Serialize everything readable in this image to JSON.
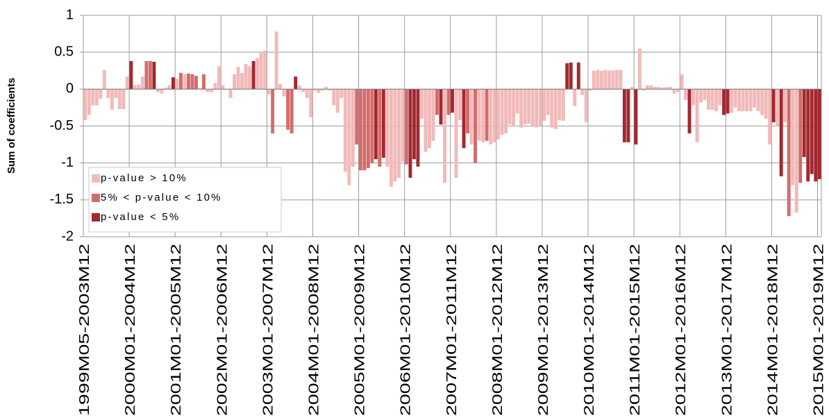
{
  "chart_data": {
    "type": "bar",
    "y_label": "Sum of coefficients",
    "categories": [
      "1999M05-2003M12",
      null,
      null,
      null,
      null,
      null,
      null,
      null,
      null,
      null,
      null,
      null,
      "2000M01-2004M12",
      null,
      null,
      null,
      null,
      null,
      null,
      null,
      null,
      null,
      null,
      null,
      "2001M01-2005M12",
      null,
      null,
      null,
      null,
      null,
      null,
      null,
      null,
      null,
      null,
      null,
      "2002M01-2006M12",
      null,
      null,
      null,
      null,
      null,
      null,
      null,
      null,
      null,
      null,
      null,
      "2003M01-2007M12",
      null,
      null,
      null,
      null,
      null,
      null,
      null,
      null,
      null,
      null,
      null,
      "2004M01-2008M12",
      null,
      null,
      null,
      null,
      null,
      null,
      null,
      null,
      null,
      null,
      null,
      "2005M01-2009M12",
      null,
      null,
      null,
      null,
      null,
      null,
      null,
      null,
      null,
      null,
      null,
      "2006M01-2010M12",
      null,
      null,
      null,
      null,
      null,
      null,
      null,
      null,
      null,
      null,
      null,
      "2007M01-2011M12",
      null,
      null,
      null,
      null,
      null,
      null,
      null,
      null,
      null,
      null,
      null,
      "2008M01-2012M12",
      null,
      null,
      null,
      null,
      null,
      null,
      null,
      null,
      null,
      null,
      null,
      "2009M01-2013M12",
      null,
      null,
      null,
      null,
      null,
      null,
      null,
      null,
      null,
      null,
      null,
      "2010M01-2014M12",
      null,
      null,
      null,
      null,
      null,
      null,
      null,
      null,
      null,
      null,
      null,
      "2011M01-2015M12",
      null,
      null,
      null,
      null,
      null,
      null,
      null,
      null,
      null,
      null,
      null,
      "2012M01-2016M12",
      null,
      null,
      null,
      null,
      null,
      null,
      null,
      null,
      null,
      null,
      null,
      "2013M01-2017M12",
      null,
      null,
      null,
      null,
      null,
      null,
      null,
      null,
      null,
      null,
      null,
      "2014M01-2018M12",
      null,
      null,
      null,
      null,
      null,
      null,
      null,
      null,
      null,
      null,
      null,
      "2015M01-2019M12"
    ],
    "series": [
      {
        "name": "p-value > 10%",
        "color": "#f2b9b9",
        "values": [
          -0.42,
          -0.35,
          -0.22,
          -0.22,
          -0.13,
          0.26,
          -0.12,
          -0.28,
          -0.12,
          -0.27,
          -0.27,
          0.17,
          null,
          0.05,
          0.06,
          0.17,
          null,
          null,
          null,
          -0.04,
          -0.06,
          0.02,
          0.05,
          null,
          0.14,
          null,
          0.2,
          null,
          null,
          null,
          0.02,
          null,
          -0.04,
          -0.04,
          0.08,
          0.31,
          0.05,
          -0.01,
          -0.12,
          0.2,
          0.3,
          0.22,
          0.34,
          0.31,
          null,
          0.42,
          0.49,
          0.52,
          -0.07,
          null,
          0.78,
          0.07,
          -0.1,
          null,
          null,
          null,
          0.05,
          -0.04,
          -0.12,
          -0.38,
          -0.02,
          -0.05,
          -0.02,
          0.03,
          -0.02,
          -0.22,
          -0.32,
          -0.12,
          -1.12,
          -1.3,
          -1.05,
          null,
          null,
          null,
          null,
          null,
          null,
          null,
          null,
          -1.05,
          -1.32,
          -1.25,
          -1.2,
          -0.98,
          null,
          null,
          null,
          null,
          -0.4,
          -0.85,
          -0.8,
          -0.7,
          null,
          null,
          -1.27,
          null,
          null,
          -1.2,
          -0.42,
          null,
          null,
          -0.75,
          null,
          -0.7,
          -0.72,
          null,
          -0.75,
          -0.72,
          -0.68,
          -0.62,
          -0.6,
          -0.48,
          -0.5,
          -0.33,
          -0.52,
          -0.48,
          -0.47,
          -0.5,
          -0.52,
          -0.5,
          -0.43,
          -0.35,
          -0.52,
          -0.54,
          -0.42,
          -0.43,
          null,
          null,
          -0.23,
          null,
          -0.08,
          -0.45,
          -0.02,
          0.25,
          0.26,
          0.25,
          0.26,
          0.25,
          0.25,
          0.26,
          0.26,
          null,
          null,
          0.03,
          null,
          0.55,
          -0.02,
          0.05,
          0.05,
          0.03,
          0.03,
          0.02,
          0.03,
          0.03,
          -0.06,
          -0.04,
          0.2,
          -0.15,
          null,
          -0.22,
          -0.72,
          -0.18,
          -0.15,
          -0.28,
          -0.28,
          -0.3,
          -0.22,
          null,
          null,
          -0.32,
          -0.25,
          -0.3,
          -0.3,
          -0.3,
          -0.3,
          -0.25,
          -0.3,
          -0.35,
          -0.4,
          -0.75,
          null,
          -0.5,
          null,
          -0.45,
          null,
          -1.3,
          -1.67,
          null,
          null,
          null,
          null,
          null,
          null
        ]
      },
      {
        "name": "5% < p-value < 10%",
        "color": "#d46b6b",
        "values": [
          null,
          null,
          null,
          null,
          null,
          null,
          null,
          null,
          null,
          null,
          null,
          null,
          null,
          null,
          null,
          null,
          0.38,
          0.38,
          null,
          null,
          null,
          null,
          null,
          null,
          null,
          0.22,
          null,
          0.21,
          0.2,
          0.18,
          null,
          0.2,
          null,
          null,
          null,
          null,
          null,
          null,
          null,
          null,
          null,
          null,
          null,
          null,
          null,
          null,
          null,
          null,
          null,
          -0.6,
          null,
          null,
          null,
          -0.55,
          -0.6,
          null,
          null,
          null,
          null,
          null,
          null,
          null,
          null,
          null,
          null,
          null,
          null,
          null,
          null,
          null,
          null,
          -0.75,
          -1.1,
          -1.1,
          -1.07,
          -1.0,
          null,
          -1.05,
          null,
          null,
          null,
          null,
          null,
          null,
          -1.02,
          null,
          null,
          null,
          null,
          null,
          null,
          null,
          -0.35,
          null,
          null,
          -0.35,
          null,
          null,
          null,
          null,
          -0.6,
          null,
          -1.0,
          null,
          null,
          -0.7,
          null,
          null,
          null,
          null,
          null,
          null,
          null,
          null,
          null,
          null,
          null,
          null,
          null,
          null,
          null,
          null,
          null,
          null,
          null,
          null,
          null,
          null,
          null,
          null,
          null,
          null,
          null,
          null,
          null,
          null,
          null,
          null,
          null,
          null,
          null,
          null,
          null,
          null,
          null,
          null,
          null,
          null,
          null,
          null,
          null,
          null,
          null,
          null,
          null,
          null,
          null,
          null,
          null,
          null,
          null,
          null,
          null,
          null,
          null,
          null,
          null,
          null,
          null,
          null,
          null,
          null,
          null,
          null,
          null,
          null,
          null,
          null,
          null,
          null,
          null,
          null,
          null,
          null,
          -1.72,
          null,
          null,
          -1.27,
          null,
          null,
          null,
          null,
          null
        ]
      },
      {
        "name": "p-value < 5%",
        "color": "#a3282f",
        "values": [
          null,
          null,
          null,
          null,
          null,
          null,
          null,
          null,
          null,
          null,
          null,
          null,
          0.38,
          null,
          null,
          null,
          null,
          null,
          0.37,
          null,
          null,
          null,
          null,
          0.16,
          null,
          null,
          null,
          null,
          null,
          null,
          null,
          null,
          null,
          null,
          null,
          null,
          null,
          null,
          null,
          null,
          null,
          null,
          null,
          null,
          0.38,
          null,
          null,
          null,
          null,
          null,
          null,
          null,
          null,
          null,
          null,
          0.17,
          null,
          null,
          null,
          null,
          null,
          null,
          null,
          null,
          null,
          null,
          null,
          null,
          null,
          null,
          null,
          null,
          null,
          null,
          null,
          null,
          -0.95,
          null,
          -0.93,
          null,
          null,
          null,
          null,
          null,
          null,
          -1.2,
          -0.95,
          -1.05,
          null,
          null,
          null,
          null,
          null,
          -0.48,
          null,
          null,
          -0.32,
          null,
          null,
          -0.8,
          null,
          null,
          null,
          null,
          null,
          null,
          null,
          null,
          null,
          null,
          null,
          null,
          null,
          null,
          null,
          null,
          null,
          null,
          null,
          null,
          null,
          null,
          null,
          null,
          null,
          null,
          0.35,
          0.36,
          null,
          0.36,
          null,
          null,
          null,
          null,
          null,
          null,
          null,
          null,
          null,
          null,
          null,
          -0.72,
          -0.72,
          null,
          -0.75,
          null,
          null,
          null,
          null,
          null,
          null,
          null,
          null,
          null,
          null,
          null,
          null,
          null,
          -0.6,
          null,
          null,
          null,
          null,
          null,
          null,
          null,
          null,
          -0.35,
          -0.33,
          null,
          null,
          null,
          null,
          null,
          null,
          null,
          null,
          null,
          null,
          null,
          -0.45,
          null,
          -1.18,
          null,
          null,
          null,
          null,
          null,
          -0.92,
          -1.25,
          -1.15,
          -1.25,
          -1.22
        ]
      }
    ],
    "ylim": [
      -2,
      1
    ],
    "yticks": [
      -2,
      -1.5,
      -1,
      -0.5,
      0,
      0.5,
      1
    ],
    "grid": true,
    "legend": "lower left"
  }
}
